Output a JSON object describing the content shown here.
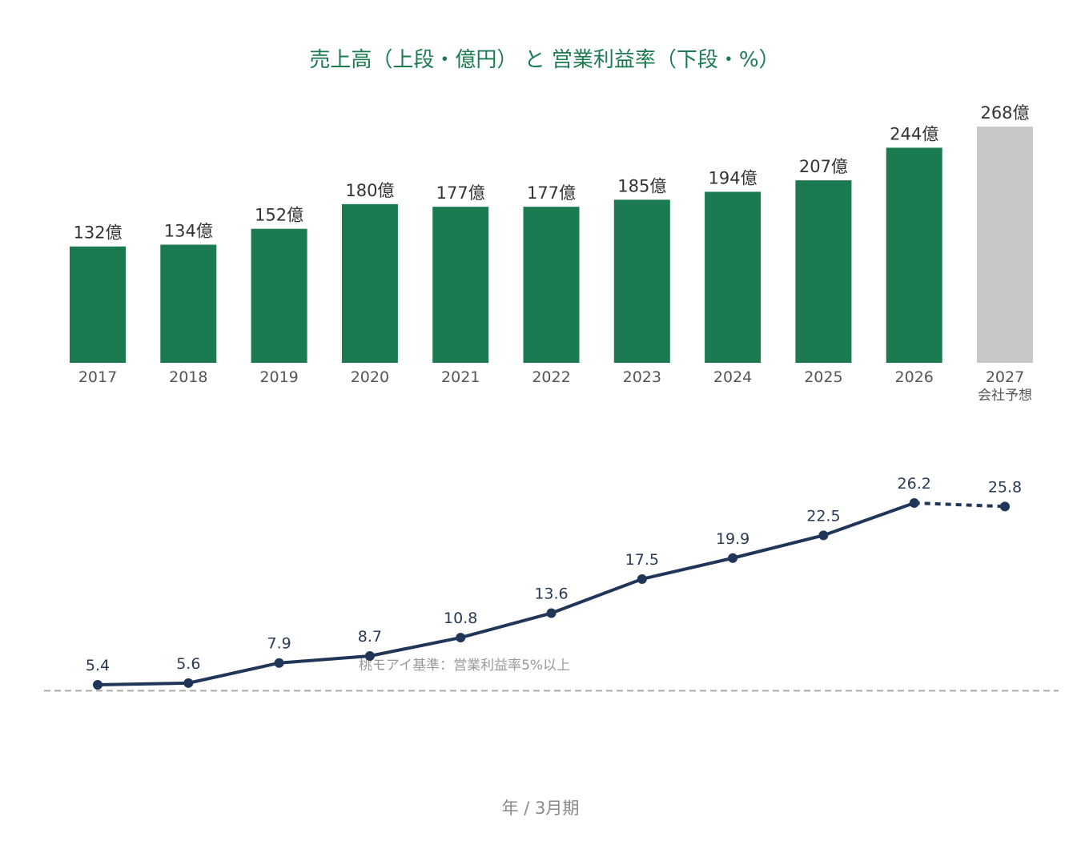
{
  "chart_data": [
    {
      "type": "bar",
      "title": "売上高（上段・億円） と 営業利益率（下段・%）",
      "unit_suffix": "億",
      "categories": [
        "2017",
        "2018",
        "2019",
        "2020",
        "2021",
        "2022",
        "2023",
        "2024",
        "2025",
        "2026",
        "2027"
      ],
      "forecast_note": "会社予想",
      "values": [
        132,
        134,
        152,
        180,
        177,
        177,
        185,
        194,
        207,
        244,
        268
      ],
      "colors": {
        "actual": "#1b7a4f",
        "forecast": "#c8c8c8"
      },
      "ylim": [
        0,
        280
      ]
    },
    {
      "type": "line",
      "categories": [
        "2017",
        "2018",
        "2019",
        "2020",
        "2021",
        "2022",
        "2023",
        "2024",
        "2025",
        "2026",
        "2027"
      ],
      "values": [
        5.4,
        5.6,
        7.9,
        8.7,
        10.8,
        13.6,
        17.5,
        19.9,
        22.5,
        26.2,
        25.8
      ],
      "forecast_from_index": 10,
      "reference_line": {
        "value": 5,
        "label": "桃モアイ基準：営業利益率5%以上"
      },
      "color": "#1f3658",
      "xlabel": "年 / 3月期",
      "ylim": [
        5,
        27
      ]
    }
  ]
}
